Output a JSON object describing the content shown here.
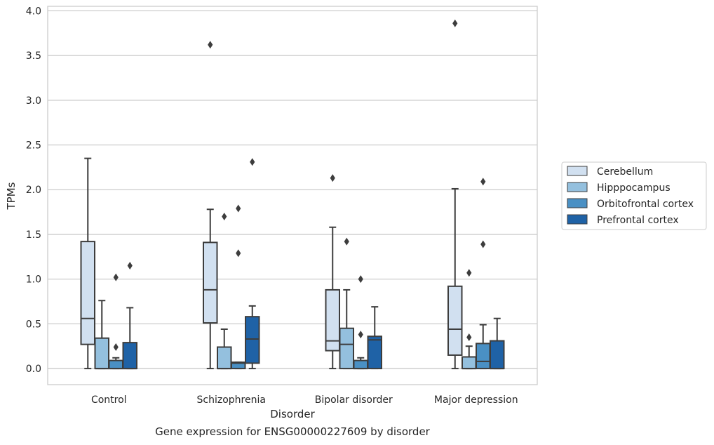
{
  "caption": "Gene expression for ENSG00000227609 by disorder",
  "chart_data": {
    "type": "box",
    "title": "",
    "xlabel": "Disorder",
    "ylabel": "TPMs",
    "ylim": [
      -0.18,
      4.05
    ],
    "yticks": [
      "0.0",
      "0.5",
      "1.0",
      "1.5",
      "2.0",
      "2.5",
      "3.0",
      "3.5",
      "4.0"
    ],
    "grid": "horizontal",
    "legend_position": "right",
    "categories": [
      "Control",
      "Schizophrenia",
      "Bipolar disorder",
      "Major depression"
    ],
    "series": [
      {
        "name": "Cerebellum",
        "color": "#d1e0f0",
        "boxes": [
          {
            "whislo": 0.0,
            "q1": 0.27,
            "med": 0.56,
            "q3": 1.42,
            "whishi": 2.35,
            "fliers": []
          },
          {
            "whislo": 0.0,
            "q1": 0.51,
            "med": 0.88,
            "q3": 1.41,
            "whishi": 1.78,
            "fliers": [
              3.62
            ]
          },
          {
            "whislo": 0.0,
            "q1": 0.2,
            "med": 0.31,
            "q3": 0.88,
            "whishi": 1.58,
            "fliers": [
              2.13
            ]
          },
          {
            "whislo": 0.0,
            "q1": 0.15,
            "med": 0.44,
            "q3": 0.92,
            "whishi": 2.01,
            "fliers": [
              3.86
            ]
          }
        ]
      },
      {
        "name": "Hipppocampus",
        "color": "#94c0de",
        "boxes": [
          {
            "whislo": 0.0,
            "q1": 0.0,
            "med": 0.0,
            "q3": 0.34,
            "whishi": 0.76,
            "fliers": []
          },
          {
            "whislo": 0.0,
            "q1": 0.0,
            "med": 0.0,
            "q3": 0.24,
            "whishi": 0.44,
            "fliers": [
              1.7
            ]
          },
          {
            "whislo": 0.0,
            "q1": 0.0,
            "med": 0.27,
            "q3": 0.45,
            "whishi": 0.88,
            "fliers": [
              1.42
            ]
          },
          {
            "whislo": 0.0,
            "q1": 0.0,
            "med": 0.0,
            "q3": 0.13,
            "whishi": 0.25,
            "fliers": [
              1.07,
              0.35
            ]
          }
        ]
      },
      {
        "name": "Orbitofrontal cortex",
        "color": "#4a90c4",
        "boxes": [
          {
            "whislo": 0.0,
            "q1": 0.0,
            "med": 0.0,
            "q3": 0.09,
            "whishi": 0.12,
            "fliers": [
              1.02,
              0.24
            ]
          },
          {
            "whislo": 0.0,
            "q1": 0.0,
            "med": 0.06,
            "q3": 0.07,
            "whishi": 0.07,
            "fliers": [
              1.79,
              1.29
            ]
          },
          {
            "whislo": 0.0,
            "q1": 0.0,
            "med": 0.0,
            "q3": 0.09,
            "whishi": 0.12,
            "fliers": [
              1.0,
              0.38
            ]
          },
          {
            "whislo": 0.0,
            "q1": 0.0,
            "med": 0.08,
            "q3": 0.28,
            "whishi": 0.49,
            "fliers": [
              2.09,
              1.39
            ]
          }
        ]
      },
      {
        "name": "Prefrontal cortex",
        "color": "#1f62a6",
        "boxes": [
          {
            "whislo": 0.0,
            "q1": 0.0,
            "med": 0.0,
            "q3": 0.29,
            "whishi": 0.68,
            "fliers": [
              1.15
            ]
          },
          {
            "whislo": 0.0,
            "q1": 0.06,
            "med": 0.33,
            "q3": 0.58,
            "whishi": 0.7,
            "fliers": [
              2.31
            ]
          },
          {
            "whislo": 0.0,
            "q1": 0.0,
            "med": 0.32,
            "q3": 0.36,
            "whishi": 0.69,
            "fliers": []
          },
          {
            "whislo": 0.0,
            "q1": 0.0,
            "med": 0.0,
            "q3": 0.31,
            "whishi": 0.56,
            "fliers": []
          }
        ]
      }
    ]
  }
}
